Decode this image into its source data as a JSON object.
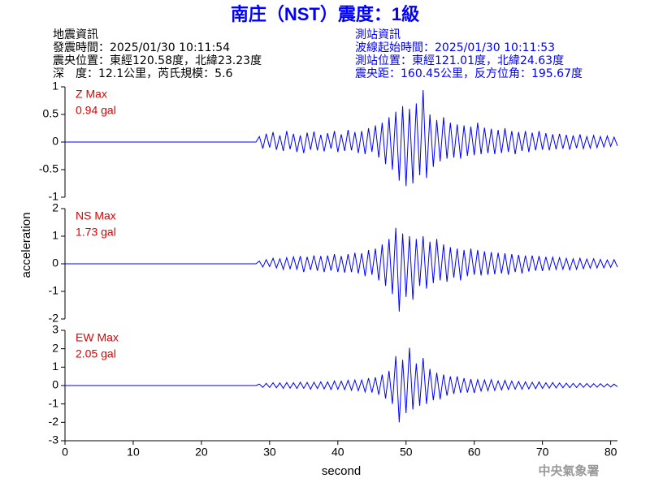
{
  "header": {
    "title": "南庄（NST）震度：1級",
    "left": [
      "地震資訊",
      "發震時間：2025/01/30 10:11:54",
      "震央位置：東經120.58度，北緯23.23度",
      "深　度：12.1公里，芮氏規模：5.6"
    ],
    "right": [
      "測站資訊",
      "波線起始時間：2025/01/30 10:11:53",
      "測站位置：東經121.01度，北緯24.63度",
      "震央距：160.45公里，反方位角：195.67度"
    ]
  },
  "credit": "中央氣象署",
  "chart_data": {
    "type": "line",
    "xlabel": "second",
    "ylabel": "acceleration",
    "xlim": [
      0,
      81
    ],
    "xticks": [
      0,
      10,
      20,
      30,
      40,
      50,
      60,
      70,
      80
    ],
    "x": [
      0,
      28,
      28.5,
      29,
      29.5,
      30,
      30.5,
      31,
      31.5,
      32,
      32.5,
      33,
      33.5,
      34,
      34.5,
      35,
      35.5,
      36,
      36.5,
      37,
      37.5,
      38,
      38.5,
      39,
      39.5,
      40,
      40.5,
      41,
      41.5,
      42,
      42.5,
      43,
      43.5,
      44,
      44.5,
      45,
      45.5,
      46,
      46.5,
      47,
      47.5,
      48,
      48.5,
      49,
      49.5,
      50,
      50.5,
      51,
      51.5,
      52,
      52.5,
      53,
      53.5,
      54,
      54.5,
      55,
      55.5,
      56,
      56.5,
      57,
      57.5,
      58,
      58.5,
      59,
      59.5,
      60,
      60.5,
      61,
      61.5,
      62,
      62.5,
      63,
      63.5,
      64,
      64.5,
      65,
      65.5,
      66,
      66.5,
      67,
      67.5,
      68,
      68.5,
      69,
      69.5,
      70,
      70.5,
      71,
      71.5,
      72,
      72.5,
      73,
      73.5,
      74,
      74.5,
      75,
      75.5,
      76,
      76.5,
      77,
      77.5,
      78,
      78.5,
      79,
      79.5,
      80,
      80.5,
      81
    ],
    "panels": [
      {
        "annotation": "Z Max",
        "annotation_value": "0.94 gal",
        "ylim": [
          -1,
          1
        ],
        "yticks": [
          1,
          0.5,
          0,
          -0.5,
          -1
        ],
        "series": [
          {
            "color": "#0000ff",
            "values": [
              0,
              0,
              0.1,
              -0.12,
              0.15,
              -0.1,
              0.18,
              -0.14,
              0.12,
              -0.16,
              0.2,
              -0.13,
              0.15,
              -0.18,
              0.12,
              -0.2,
              0.17,
              -0.14,
              0.19,
              -0.15,
              0.13,
              -0.17,
              0.16,
              -0.12,
              0.2,
              -0.18,
              0.14,
              -0.16,
              0.22,
              -0.15,
              0.18,
              -0.2,
              0.2,
              -0.22,
              0.25,
              -0.18,
              0.3,
              -0.28,
              0.35,
              -0.4,
              0.45,
              -0.5,
              0.55,
              -0.7,
              0.65,
              -0.8,
              0.6,
              -0.75,
              0.7,
              -0.6,
              0.94,
              -0.65,
              0.5,
              -0.45,
              0.4,
              -0.35,
              0.45,
              -0.3,
              0.35,
              -0.28,
              0.32,
              -0.3,
              0.3,
              -0.25,
              0.28,
              -0.24,
              0.35,
              -0.22,
              0.26,
              -0.2,
              0.24,
              -0.22,
              0.22,
              -0.2,
              0.25,
              -0.18,
              0.2,
              -0.22,
              0.18,
              -0.16,
              0.2,
              -0.18,
              0.17,
              -0.15,
              0.2,
              -0.14,
              0.16,
              -0.15,
              0.14,
              -0.13,
              0.15,
              -0.12,
              0.13,
              -0.14,
              0.12,
              -0.11,
              0.14,
              -0.12,
              0.1,
              -0.11,
              0.12,
              -0.1,
              0.1,
              -0.09,
              0.11,
              -0.08,
              0.09,
              -0.07
            ]
          }
        ]
      },
      {
        "annotation": "NS Max",
        "annotation_value": "1.73 gal",
        "ylim": [
          -2,
          2
        ],
        "yticks": [
          2,
          1,
          0,
          -1,
          -2
        ],
        "series": [
          {
            "color": "#0000ff",
            "values": [
              0,
              0,
              0.1,
              -0.12,
              0.15,
              -0.1,
              0.2,
              -0.15,
              0.18,
              -0.2,
              0.22,
              -0.18,
              0.25,
              -0.2,
              0.28,
              -0.3,
              0.25,
              -0.22,
              0.3,
              -0.25,
              0.28,
              -0.3,
              0.3,
              -0.25,
              0.35,
              -0.3,
              0.28,
              -0.32,
              0.35,
              -0.3,
              0.4,
              -0.35,
              0.38,
              -0.45,
              0.5,
              -0.4,
              0.55,
              -0.6,
              0.7,
              -0.8,
              0.9,
              -1.1,
              1.3,
              -1.73,
              1.1,
              -1.2,
              1.0,
              -1.3,
              0.9,
              -0.8,
              1.0,
              -0.9,
              0.8,
              -0.7,
              0.9,
              -0.6,
              0.7,
              -0.65,
              0.6,
              -0.5,
              0.55,
              -0.6,
              0.5,
              -0.45,
              0.55,
              -0.4,
              0.5,
              -0.42,
              0.45,
              -0.4,
              0.42,
              -0.38,
              0.4,
              -0.35,
              0.38,
              -0.4,
              0.35,
              -0.3,
              0.32,
              -0.35,
              0.3,
              -0.28,
              0.3,
              -0.25,
              0.28,
              -0.26,
              0.25,
              -0.22,
              0.24,
              -0.2,
              0.22,
              -0.2,
              0.2,
              -0.22,
              0.18,
              -0.2,
              0.2,
              -0.18,
              0.17,
              -0.16,
              0.18,
              -0.15,
              0.16,
              -0.15,
              0.14,
              -0.13,
              0.15,
              -0.12
            ]
          }
        ]
      },
      {
        "annotation": "EW Max",
        "annotation_value": "2.05 gal",
        "ylim": [
          -3,
          3
        ],
        "yticks": [
          3,
          2,
          1,
          0,
          -1,
          -2,
          -3
        ],
        "series": [
          {
            "color": "#0000ff",
            "values": [
              0,
              0,
              0.08,
              -0.1,
              0.12,
              -0.1,
              0.15,
              -0.12,
              0.14,
              -0.15,
              0.16,
              -0.14,
              0.15,
              -0.16,
              0.18,
              -0.15,
              0.17,
              -0.2,
              0.18,
              -0.16,
              0.2,
              -0.18,
              0.2,
              -0.22,
              0.25,
              -0.2,
              0.24,
              -0.22,
              0.28,
              -0.25,
              0.3,
              -0.28,
              0.3,
              -0.35,
              0.4,
              -0.38,
              0.45,
              -0.5,
              0.6,
              -0.7,
              0.8,
              -1.0,
              1.6,
              -2.0,
              1.4,
              -1.5,
              2.05,
              -1.3,
              1.2,
              -1.1,
              1.5,
              -1.0,
              0.9,
              -0.8,
              0.7,
              -0.75,
              0.6,
              -0.55,
              0.5,
              -0.45,
              0.5,
              -0.4,
              0.4,
              -0.38,
              0.35,
              -0.4,
              0.32,
              -0.3,
              0.3,
              -0.28,
              0.32,
              -0.26,
              0.25,
              -0.24,
              0.28,
              -0.22,
              0.24,
              -0.2,
              0.22,
              -0.2,
              0.2,
              -0.18,
              0.18,
              -0.17,
              0.2,
              -0.16,
              0.15,
              -0.14,
              0.16,
              -0.13,
              0.14,
              -0.12,
              0.13,
              -0.12,
              0.12,
              -0.11,
              0.12,
              -0.1,
              0.11,
              -0.1,
              0.1,
              -0.09,
              0.1,
              -0.08,
              0.09,
              -0.08,
              0.08,
              -0.07
            ]
          }
        ]
      }
    ]
  }
}
